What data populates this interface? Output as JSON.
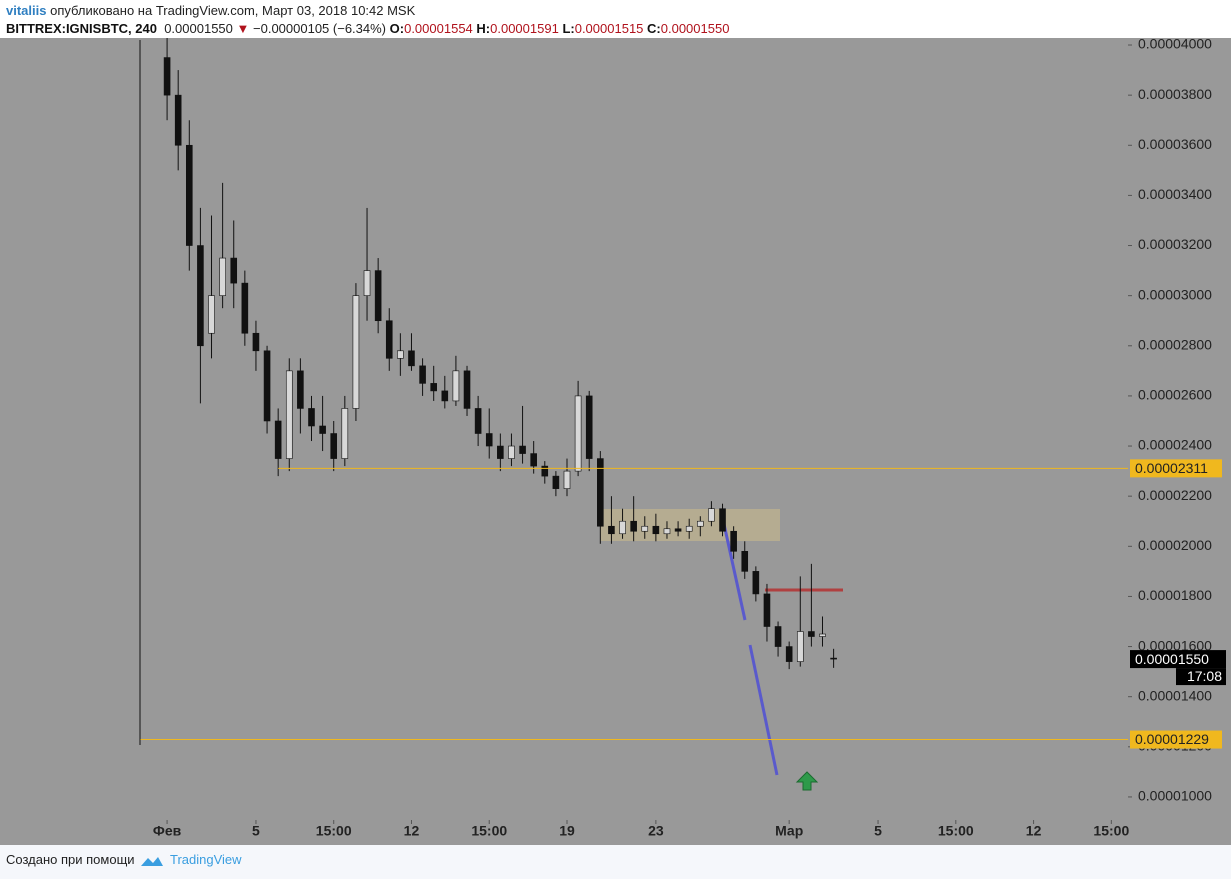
{
  "header": {
    "user": "vitaliis",
    "published": "опубликовано на TradingView.com, Март 03, 2018 10:42 MSK",
    "symbol": "BITTREX:IGNISBTC, 240",
    "last": "0.00001550",
    "arrow": "▼",
    "change": "−0.00000105 (−6.34%)",
    "o_key": "O:",
    "o": "0.00001554",
    "h_key": "H:",
    "h": "0.00001591",
    "l_key": "L:",
    "l": "0.00001515",
    "c_key": "C:",
    "c": "0.00001550"
  },
  "footer": {
    "made_with": "Создано при помощи",
    "brand": "TradingView"
  },
  "chart_data": {
    "type": "candlestick",
    "x": [
      0,
      0.5,
      1,
      1.5,
      2,
      2.5,
      3,
      3.5,
      4,
      4.5,
      5,
      5.5,
      6,
      6.5,
      7,
      7.5,
      8,
      8.5,
      9,
      9.5,
      10,
      10.5,
      11,
      11.5,
      12,
      12.5,
      13,
      13.5,
      14,
      14.5,
      15,
      15.5,
      16,
      16.5,
      17,
      17.5,
      18,
      18.5,
      19,
      19.5,
      20,
      20.5,
      21,
      21.5,
      22,
      22.5,
      23,
      23.5,
      24,
      24.5,
      25,
      25.5,
      26,
      26.5,
      27,
      27.5,
      28,
      28.5,
      29,
      29.5,
      30
    ],
    "open": [
      3.95e-05,
      3.8e-05,
      3.6e-05,
      3.2e-05,
      2.85e-05,
      3e-05,
      3.15e-05,
      3.05e-05,
      2.85e-05,
      2.78e-05,
      2.5e-05,
      2.35e-05,
      2.7e-05,
      2.55e-05,
      2.48e-05,
      2.45e-05,
      2.35e-05,
      2.55e-05,
      3e-05,
      3.1e-05,
      2.9e-05,
      2.75e-05,
      2.78e-05,
      2.72e-05,
      2.65e-05,
      2.62e-05,
      2.58e-05,
      2.7e-05,
      2.55e-05,
      2.45e-05,
      2.4e-05,
      2.35e-05,
      2.4e-05,
      2.37e-05,
      2.32e-05,
      2.28e-05,
      2.23e-05,
      2.3e-05,
      2.6e-05,
      2.35e-05,
      2.08e-05,
      2.05e-05,
      2.1e-05,
      2.06e-05,
      2.08e-05,
      2.05e-05,
      2.07e-05,
      2.06e-05,
      2.08e-05,
      2.1e-05,
      2.15e-05,
      2.06e-05,
      1.98e-05,
      1.9e-05,
      1.81e-05,
      1.68e-05,
      1.6e-05,
      1.54e-05,
      1.66e-05,
      1.64e-05,
      1.554e-05
    ],
    "high": [
      4.1e-05,
      3.9e-05,
      3.7e-05,
      3.35e-05,
      3.32e-05,
      3.45e-05,
      3.3e-05,
      3.1e-05,
      2.9e-05,
      2.8e-05,
      2.55e-05,
      2.75e-05,
      2.75e-05,
      2.6e-05,
      2.6e-05,
      2.5e-05,
      2.6e-05,
      3.05e-05,
      3.35e-05,
      3.15e-05,
      2.95e-05,
      2.85e-05,
      2.85e-05,
      2.75e-05,
      2.72e-05,
      2.68e-05,
      2.76e-05,
      2.72e-05,
      2.6e-05,
      2.55e-05,
      2.45e-05,
      2.45e-05,
      2.56e-05,
      2.42e-05,
      2.34e-05,
      2.3e-05,
      2.35e-05,
      2.66e-05,
      2.62e-05,
      2.38e-05,
      2.2e-05,
      2.15e-05,
      2.2e-05,
      2.12e-05,
      2.13e-05,
      2.1e-05,
      2.1e-05,
      2.11e-05,
      2.12e-05,
      2.18e-05,
      2.17e-05,
      2.08e-05,
      2.02e-05,
      1.92e-05,
      1.85e-05,
      1.7e-05,
      1.62e-05,
      1.88e-05,
      1.93e-05,
      1.72e-05,
      1.591e-05
    ],
    "low": [
      3.7e-05,
      3.5e-05,
      3.1e-05,
      2.57e-05,
      2.75e-05,
      2.95e-05,
      2.95e-05,
      2.8e-05,
      2.7e-05,
      2.45e-05,
      2.28e-05,
      2.3e-05,
      2.45e-05,
      2.42e-05,
      2.38e-05,
      2.3e-05,
      2.32e-05,
      2.5e-05,
      2.9e-05,
      2.85e-05,
      2.7e-05,
      2.68e-05,
      2.7e-05,
      2.6e-05,
      2.58e-05,
      2.55e-05,
      2.56e-05,
      2.52e-05,
      2.4e-05,
      2.35e-05,
      2.3e-05,
      2.32e-05,
      2.33e-05,
      2.29e-05,
      2.25e-05,
      2.2e-05,
      2.2e-05,
      2.28e-05,
      2.3e-05,
      2.01e-05,
      2.01e-05,
      2.03e-05,
      2.02e-05,
      2.03e-05,
      2.02e-05,
      2.03e-05,
      2.04e-05,
      2.03e-05,
      2.04e-05,
      2.08e-05,
      2.04e-05,
      1.95e-05,
      1.87e-05,
      1.78e-05,
      1.62e-05,
      1.56e-05,
      1.51e-05,
      1.52e-05,
      1.6e-05,
      1.6e-05,
      1.515e-05
    ],
    "close": [
      3.8e-05,
      3.6e-05,
      3.2e-05,
      2.8e-05,
      3e-05,
      3.15e-05,
      3.05e-05,
      2.85e-05,
      2.78e-05,
      2.5e-05,
      2.35e-05,
      2.7e-05,
      2.55e-05,
      2.48e-05,
      2.45e-05,
      2.35e-05,
      2.55e-05,
      3e-05,
      3.1e-05,
      2.9e-05,
      2.75e-05,
      2.78e-05,
      2.72e-05,
      2.65e-05,
      2.62e-05,
      2.58e-05,
      2.7e-05,
      2.55e-05,
      2.45e-05,
      2.4e-05,
      2.35e-05,
      2.4e-05,
      2.37e-05,
      2.32e-05,
      2.28e-05,
      2.23e-05,
      2.3e-05,
      2.6e-05,
      2.35e-05,
      2.08e-05,
      2.05e-05,
      2.1e-05,
      2.06e-05,
      2.08e-05,
      2.05e-05,
      2.07e-05,
      2.06e-05,
      2.08e-05,
      2.1e-05,
      2.15e-05,
      2.06e-05,
      1.98e-05,
      1.9e-05,
      1.81e-05,
      1.68e-05,
      1.6e-05,
      1.54e-05,
      1.66e-05,
      1.64e-05,
      1.65e-05,
      1.55e-05
    ],
    "up_color": "#d8d8d8",
    "down_color": "#111111",
    "xlim": [
      -7.52,
      43.25
    ],
    "xticks": [
      {
        "value": 0,
        "label": "Фев"
      },
      {
        "value": 4,
        "label": "5"
      },
      {
        "value": 7.5,
        "label": "15:00"
      },
      {
        "value": 11,
        "label": "12"
      },
      {
        "value": 14.5,
        "label": "15:00"
      },
      {
        "value": 18,
        "label": "19"
      },
      {
        "value": 22,
        "label": "23"
      },
      {
        "value": 28,
        "label": "Мар"
      },
      {
        "value": 32,
        "label": "5"
      },
      {
        "value": 35.5,
        "label": "15:00"
      },
      {
        "value": 39,
        "label": "12"
      },
      {
        "value": 42.5,
        "label": "15:00"
      }
    ],
    "ylim": [
      9.08e-06,
      4.028e-05
    ],
    "yticks": [
      {
        "value": 1e-05,
        "label": "0.00001000"
      },
      {
        "value": 1.2e-05,
        "label": "0.00001200"
      },
      {
        "value": 1.4e-05,
        "label": "0.00001400"
      },
      {
        "value": 1.6e-05,
        "label": "0.00001600"
      },
      {
        "value": 1.8e-05,
        "label": "0.00001800"
      },
      {
        "value": 2e-05,
        "label": "0.00002000"
      },
      {
        "value": 2.2e-05,
        "label": "0.00002200"
      },
      {
        "value": 2.4e-05,
        "label": "0.00002400"
      },
      {
        "value": 2.6e-05,
        "label": "0.00002600"
      },
      {
        "value": 2.8e-05,
        "label": "0.00002800"
      },
      {
        "value": 3e-05,
        "label": "0.00003000"
      },
      {
        "value": 3.2e-05,
        "label": "0.00003200"
      },
      {
        "value": 3.4e-05,
        "label": "0.00003400"
      },
      {
        "value": 3.6e-05,
        "label": "0.00003600"
      },
      {
        "value": 3.8e-05,
        "label": "0.00003800"
      },
      {
        "value": 4e-05,
        "label": "0.00004000"
      }
    ],
    "hlines": [
      {
        "value": 2.311e-05,
        "label": "0.00002311",
        "from": 5,
        "color": "#f0b81e"
      },
      {
        "value": 1.229e-05,
        "label": "0.00001229",
        "from": -1.2,
        "color": "#f0b81e"
      }
    ],
    "last_price": {
      "value": 1.55e-05,
      "label": "0.00001550",
      "time": "17:08"
    }
  }
}
